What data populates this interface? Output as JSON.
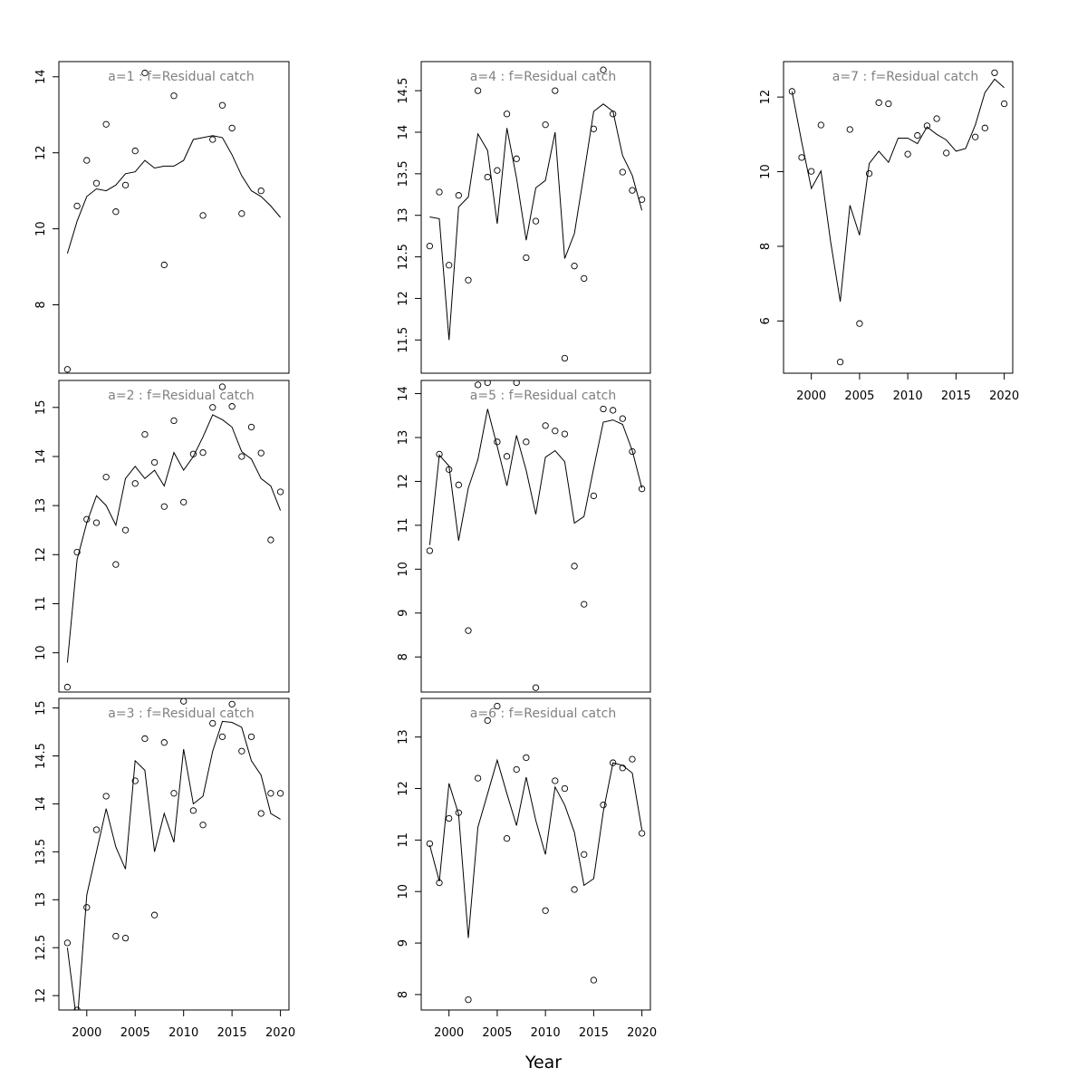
{
  "figure": {
    "xlabel": "Year"
  },
  "chart_data": [
    {
      "type": "line",
      "title": "a=1  :  f=Residual catch",
      "xlabel": "",
      "ylabel": "",
      "xlim": [
        1998,
        2020
      ],
      "ylim": [
        6.2,
        14.4
      ],
      "xticks": [],
      "yticks": [
        8,
        10,
        12,
        14
      ],
      "x": [
        1998,
        1999,
        2000,
        2001,
        2002,
        2003,
        2004,
        2005,
        2006,
        2007,
        2008,
        2009,
        2010,
        2011,
        2012,
        2013,
        2014,
        2015,
        2016,
        2017,
        2018,
        2019,
        2020
      ],
      "series": [
        {
          "kind": "points",
          "values": [
            6.3,
            10.6,
            11.8,
            11.2,
            12.75,
            10.45,
            11.15,
            12.05,
            14.1,
            null,
            9.05,
            13.5,
            null,
            null,
            10.35,
            12.35,
            13.25,
            12.65,
            10.4,
            null,
            11.0,
            null,
            null
          ]
        },
        {
          "kind": "line",
          "values": [
            9.35,
            10.2,
            10.85,
            11.05,
            11.0,
            11.15,
            11.45,
            11.5,
            11.8,
            11.6,
            11.65,
            11.65,
            11.8,
            12.35,
            12.4,
            12.45,
            12.4,
            11.95,
            11.4,
            11.0,
            10.85,
            10.6,
            10.3
          ]
        }
      ]
    },
    {
      "type": "line",
      "title": "a=2  :  f=Residual catch",
      "xlabel": "",
      "ylabel": "",
      "xlim": [
        1998,
        2020
      ],
      "ylim": [
        9.2,
        15.55
      ],
      "xticks": [],
      "yticks": [
        10,
        11,
        12,
        13,
        14,
        15
      ],
      "x": [
        1998,
        1999,
        2000,
        2001,
        2002,
        2003,
        2004,
        2005,
        2006,
        2007,
        2008,
        2009,
        2010,
        2011,
        2012,
        2013,
        2014,
        2015,
        2016,
        2017,
        2018,
        2019,
        2020
      ],
      "series": [
        {
          "kind": "points",
          "values": [
            9.3,
            12.05,
            12.72,
            12.65,
            13.58,
            11.8,
            12.5,
            13.45,
            14.45,
            13.88,
            12.98,
            14.73,
            13.07,
            14.05,
            14.08,
            15.0,
            15.42,
            15.02,
            14.0,
            14.6,
            14.07,
            12.3,
            13.28
          ]
        },
        {
          "kind": "line",
          "values": [
            9.8,
            11.9,
            12.65,
            13.2,
            13.0,
            12.6,
            13.55,
            13.8,
            13.55,
            13.72,
            13.4,
            14.08,
            13.72,
            14.0,
            14.4,
            14.85,
            14.75,
            14.6,
            14.1,
            13.95,
            13.55,
            13.4,
            12.9
          ]
        }
      ]
    },
    {
      "type": "line",
      "title": "a=3  :  f=Residual catch",
      "xlabel": "",
      "ylabel": "",
      "xlim": [
        1998,
        2020
      ],
      "ylim": [
        11.85,
        15.1
      ],
      "xticks": [
        2000,
        2005,
        2010,
        2015,
        2020
      ],
      "yticks": [
        12.0,
        12.5,
        13.0,
        13.5,
        14.0,
        14.5,
        15.0
      ],
      "x": [
        1998,
        1999,
        2000,
        2001,
        2002,
        2003,
        2004,
        2005,
        2006,
        2007,
        2008,
        2009,
        2010,
        2011,
        2012,
        2013,
        2014,
        2015,
        2016,
        2017,
        2018,
        2019,
        2020
      ],
      "series": [
        {
          "kind": "points",
          "values": [
            12.55,
            11.85,
            12.92,
            13.73,
            14.08,
            12.62,
            12.6,
            14.24,
            14.68,
            12.84,
            14.64,
            14.11,
            15.07,
            13.93,
            13.78,
            14.84,
            14.7,
            15.04,
            14.55,
            14.7,
            13.9,
            14.11,
            14.11
          ]
        },
        {
          "kind": "line",
          "values": [
            12.5,
            11.7,
            13.05,
            13.5,
            13.95,
            13.55,
            13.32,
            14.45,
            14.35,
            13.5,
            13.9,
            13.6,
            14.57,
            14.0,
            14.08,
            14.55,
            14.86,
            14.85,
            14.8,
            14.45,
            14.3,
            13.9,
            13.84
          ]
        }
      ]
    },
    {
      "type": "line",
      "title": "a=4  :  f=Residual catch",
      "xlabel": "",
      "ylabel": "",
      "xlim": [
        1998,
        2020
      ],
      "ylim": [
        11.1,
        14.85
      ],
      "xticks": [],
      "yticks": [
        11.5,
        12.0,
        12.5,
        13.0,
        13.5,
        14.0,
        14.5
      ],
      "x": [
        1998,
        1999,
        2000,
        2001,
        2002,
        2003,
        2004,
        2005,
        2006,
        2007,
        2008,
        2009,
        2010,
        2011,
        2012,
        2013,
        2014,
        2015,
        2016,
        2017,
        2018,
        2019,
        2020
      ],
      "series": [
        {
          "kind": "points",
          "values": [
            12.63,
            13.28,
            12.4,
            13.24,
            12.22,
            14.5,
            13.46,
            13.54,
            14.22,
            13.68,
            12.49,
            12.93,
            14.09,
            14.5,
            11.28,
            12.39,
            12.24,
            14.04,
            14.75,
            14.22,
            13.52,
            13.3,
            13.19
          ]
        },
        {
          "kind": "line",
          "values": [
            12.98,
            12.96,
            11.5,
            13.1,
            13.22,
            13.98,
            13.78,
            12.9,
            14.05,
            13.45,
            12.7,
            13.33,
            13.42,
            14.0,
            12.48,
            12.78,
            13.5,
            14.25,
            14.34,
            14.25,
            13.72,
            13.48,
            13.06
          ]
        }
      ]
    },
    {
      "type": "line",
      "title": "a=5  :  f=Residual catch",
      "xlabel": "",
      "ylabel": "",
      "xlim": [
        1998,
        2020
      ],
      "ylim": [
        7.2,
        14.3
      ],
      "xticks": [],
      "yticks": [
        8,
        9,
        10,
        11,
        12,
        13,
        14
      ],
      "x": [
        1998,
        1999,
        2000,
        2001,
        2002,
        2003,
        2004,
        2005,
        2006,
        2007,
        2008,
        2009,
        2010,
        2011,
        2012,
        2013,
        2014,
        2015,
        2016,
        2017,
        2018,
        2019,
        2020
      ],
      "series": [
        {
          "kind": "points",
          "values": [
            10.42,
            12.62,
            12.27,
            11.92,
            8.6,
            14.2,
            14.25,
            12.9,
            12.57,
            14.25,
            12.9,
            7.3,
            13.27,
            13.15,
            13.08,
            10.07,
            9.2,
            11.67,
            13.65,
            13.62,
            13.43,
            12.68,
            11.83
          ]
        },
        {
          "kind": "line",
          "values": [
            10.55,
            12.6,
            12.35,
            10.65,
            11.85,
            12.5,
            13.65,
            12.8,
            11.9,
            13.05,
            12.25,
            11.25,
            12.55,
            12.7,
            12.45,
            11.05,
            11.2,
            12.3,
            13.35,
            13.4,
            13.3,
            12.7,
            11.85
          ]
        }
      ]
    },
    {
      "type": "line",
      "title": "a=6  :  f=Residual catch",
      "xlabel": "",
      "ylabel": "",
      "xlim": [
        1998,
        2020
      ],
      "ylim": [
        7.7,
        13.75
      ],
      "xticks": [
        2000,
        2005,
        2010,
        2015,
        2020
      ],
      "yticks": [
        8,
        9,
        10,
        11,
        12,
        13
      ],
      "x": [
        1998,
        1999,
        2000,
        2001,
        2002,
        2003,
        2004,
        2005,
        2006,
        2007,
        2008,
        2009,
        2010,
        2011,
        2012,
        2013,
        2014,
        2015,
        2016,
        2017,
        2018,
        2019,
        2020
      ],
      "series": [
        {
          "kind": "points",
          "values": [
            10.93,
            10.17,
            11.42,
            11.53,
            7.9,
            12.2,
            13.32,
            13.6,
            11.03,
            12.37,
            12.6,
            null,
            9.63,
            12.15,
            12.0,
            10.04,
            10.72,
            8.28,
            11.68,
            12.5,
            12.4,
            12.57,
            11.13
          ]
        },
        {
          "kind": "line",
          "values": [
            10.9,
            10.2,
            12.1,
            11.5,
            9.1,
            11.25,
            11.9,
            12.55,
            11.9,
            11.28,
            12.22,
            11.38,
            10.72,
            12.03,
            11.68,
            11.15,
            10.12,
            10.25,
            11.55,
            12.5,
            12.45,
            12.3,
            11.2
          ]
        }
      ]
    },
    {
      "type": "line",
      "title": "a=7  :  f=Residual catch",
      "xlabel": "",
      "ylabel": "",
      "xlim": [
        1998,
        2020
      ],
      "ylim": [
        4.6,
        12.95
      ],
      "xticks": [
        2000,
        2005,
        2010,
        2015,
        2020
      ],
      "yticks": [
        6,
        8,
        10,
        12
      ],
      "x": [
        1998,
        1999,
        2000,
        2001,
        2002,
        2003,
        2004,
        2005,
        2006,
        2007,
        2008,
        2009,
        2010,
        2011,
        2012,
        2013,
        2014,
        2015,
        2016,
        2017,
        2018,
        2019,
        2020
      ],
      "series": [
        {
          "kind": "points",
          "values": [
            12.15,
            10.38,
            10.01,
            11.25,
            null,
            4.9,
            11.13,
            5.93,
            9.95,
            11.85,
            11.82,
            null,
            10.47,
            10.97,
            11.23,
            11.42,
            10.5,
            null,
            null,
            10.93,
            11.17,
            12.65,
            11.82
          ]
        },
        {
          "kind": "line",
          "values": [
            12.15,
            10.8,
            9.55,
            10.02,
            8.12,
            6.52,
            9.1,
            8.3,
            10.22,
            10.55,
            10.25,
            10.9,
            10.9,
            10.75,
            11.2,
            11.0,
            10.85,
            10.55,
            10.62,
            11.25,
            12.12,
            12.48,
            12.25
          ]
        }
      ]
    }
  ]
}
